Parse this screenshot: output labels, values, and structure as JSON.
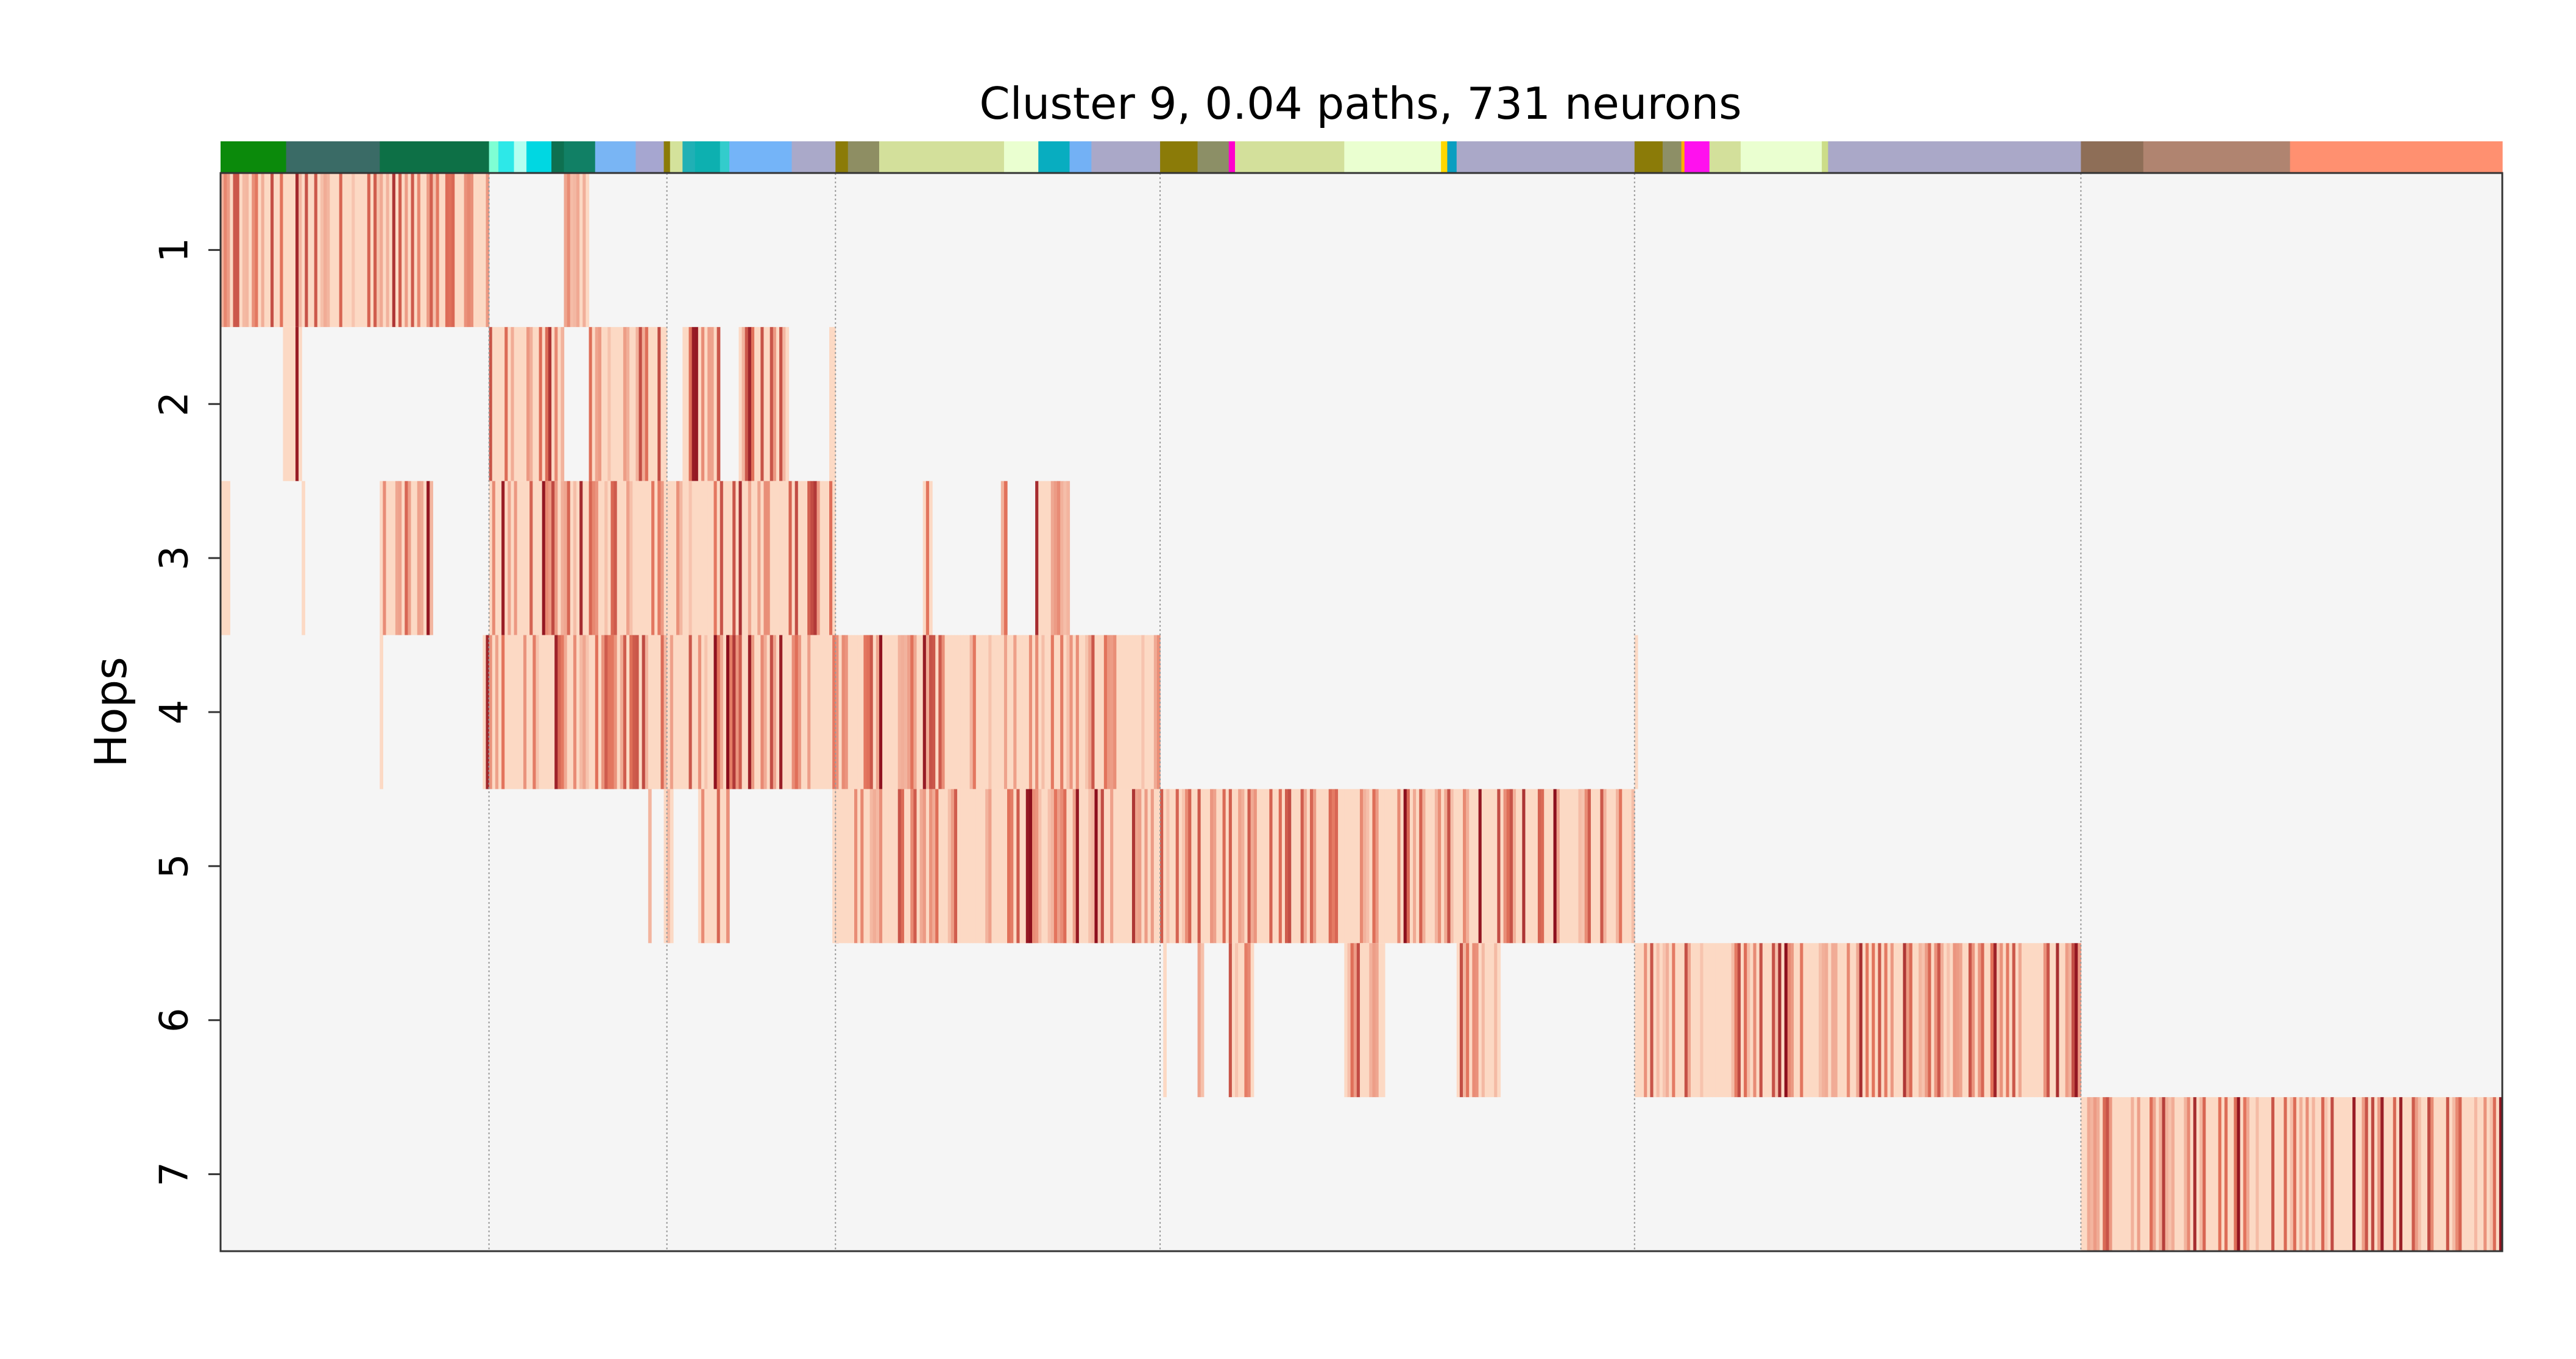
{
  "chart_data": {
    "type": "heatmap",
    "title": "Cluster 9, 0.04 paths, 731 neurons",
    "ylabel": "Hops",
    "xlabel": "",
    "y_ticks": [
      "1",
      "2",
      "3",
      "4",
      "5",
      "6",
      "7"
    ],
    "n_neurons": 731,
    "group_boundaries": [
      86,
      143,
      197,
      301,
      453,
      596
    ],
    "cmap": {
      "background": "#f5f5f5",
      "low": "#fcd9c4",
      "mid": "#e2725b",
      "high": "#8b0d1c"
    },
    "color_bar": [
      [
        0,
        21,
        "#0b8a0b"
      ],
      [
        21,
        51,
        "#3a6b66"
      ],
      [
        51,
        86,
        "#0d7046"
      ],
      [
        86,
        89,
        "#7fffd4"
      ],
      [
        89,
        94,
        "#2de8e8"
      ],
      [
        94,
        98,
        "#b4fff0"
      ],
      [
        98,
        106,
        "#00d7e2"
      ],
      [
        106,
        110,
        "#0e7050"
      ],
      [
        110,
        120,
        "#118065"
      ],
      [
        120,
        133,
        "#79b5f4"
      ],
      [
        133,
        142,
        "#a6a6d0"
      ],
      [
        142,
        144,
        "#8b7b08"
      ],
      [
        144,
        148,
        "#d4e29b"
      ],
      [
        148,
        152,
        "#20b0b5"
      ],
      [
        152,
        160,
        "#0db0b0"
      ],
      [
        160,
        163,
        "#33cccc"
      ],
      [
        163,
        183,
        "#74b4f8"
      ],
      [
        183,
        197,
        "#aaa9c9"
      ],
      [
        197,
        201,
        "#8b7b08"
      ],
      [
        201,
        211,
        "#8e8e63"
      ],
      [
        211,
        251,
        "#d3e09b"
      ],
      [
        251,
        262,
        "#eaffd0"
      ],
      [
        262,
        272,
        "#08adc0"
      ],
      [
        272,
        279,
        "#73b1f5"
      ],
      [
        279,
        301,
        "#aaa8c8"
      ],
      [
        301,
        313,
        "#8b7b08"
      ],
      [
        313,
        323,
        "#8c8f66"
      ],
      [
        323,
        325,
        "#ff00cc"
      ],
      [
        325,
        360,
        "#d3e09b"
      ],
      [
        360,
        391,
        "#eaffd0"
      ],
      [
        391,
        393,
        "#ffd700"
      ],
      [
        393,
        396,
        "#0a9ec0"
      ],
      [
        396,
        453,
        "#aaa8c8"
      ],
      [
        453,
        462,
        "#8b7b08"
      ],
      [
        462,
        468,
        "#8d8f66"
      ],
      [
        468,
        469,
        "#ffb000"
      ],
      [
        469,
        477,
        "#ff11ee"
      ],
      [
        477,
        487,
        "#d3e09b"
      ],
      [
        487,
        513,
        "#eaffd0"
      ],
      [
        513,
        515,
        "#ccdd88"
      ],
      [
        515,
        596,
        "#aaa8c8"
      ],
      [
        596,
        616,
        "#8e6e57"
      ],
      [
        616,
        663,
        "#b08470"
      ],
      [
        663,
        731,
        "#ff9070"
      ]
    ],
    "rows": [
      {
        "hop": 1,
        "ranges": [
          [
            0,
            86
          ],
          [
            110,
            118
          ]
        ],
        "density": 0.85
      },
      {
        "hop": 2,
        "ranges": [
          [
            20,
            26
          ],
          [
            86,
            110
          ],
          [
            118,
            143
          ],
          [
            148,
            160
          ],
          [
            166,
            182
          ],
          [
            195,
            197
          ]
        ],
        "density": 0.65
      },
      {
        "hop": 3,
        "ranges": [
          [
            0,
            3
          ],
          [
            26,
            27
          ],
          [
            51,
            68
          ],
          [
            86,
            197
          ],
          [
            225,
            228
          ],
          [
            250,
            252
          ],
          [
            261,
            272
          ]
        ],
        "density": 0.7
      },
      {
        "hop": 4,
        "ranges": [
          [
            51,
            52
          ],
          [
            84,
            197
          ],
          [
            197,
            301
          ],
          [
            453,
            454
          ]
        ],
        "density": 0.75
      },
      {
        "hop": 5,
        "ranges": [
          [
            137,
            138
          ],
          [
            142,
            145
          ],
          [
            153,
            163
          ],
          [
            196,
            198
          ],
          [
            197,
            301
          ],
          [
            301,
            453
          ]
        ],
        "density": 0.7
      },
      {
        "hop": 6,
        "ranges": [
          [
            302,
            303
          ],
          [
            313,
            315
          ],
          [
            323,
            331
          ],
          [
            360,
            373
          ],
          [
            396,
            410
          ],
          [
            453,
            596
          ]
        ],
        "density": 0.7
      },
      {
        "hop": 7,
        "ranges": [
          [
            596,
            731
          ]
        ],
        "density": 0.75
      }
    ]
  }
}
